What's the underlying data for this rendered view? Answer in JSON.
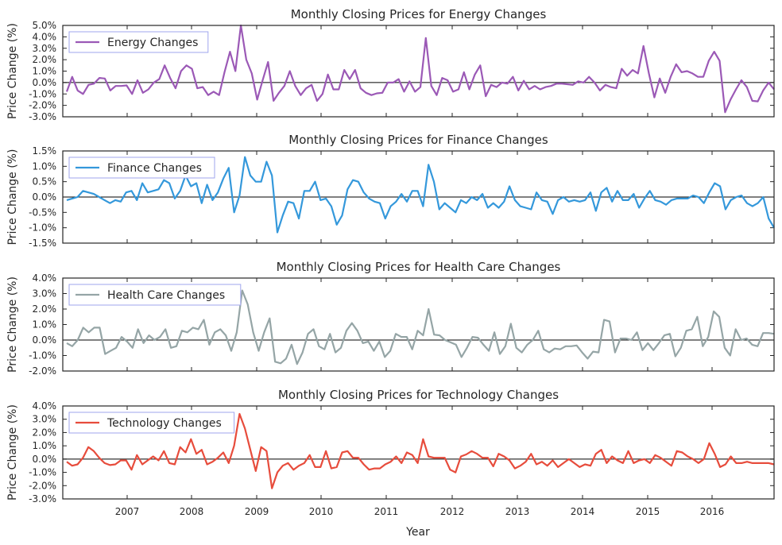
{
  "figure": {
    "xlabel": "Year"
  },
  "chart_data": [
    {
      "type": "line",
      "title": "Monthly Closing Prices for Energy Changes",
      "ylabel": "Price Change (%)",
      "ylim": [
        -3.0,
        5.0
      ],
      "yticks": [
        -3.0,
        -2.0,
        -1.0,
        0.0,
        1.0,
        2.0,
        3.0,
        4.0,
        5.0
      ],
      "ytick_labels": [
        "-3.0%",
        "-2.0%",
        "-1.0%",
        "0.0%",
        "1.0%",
        "2.0%",
        "3.0%",
        "4.0%",
        "5.0%"
      ],
      "legend_position": "top-left",
      "series": [
        {
          "name": "Energy Changes",
          "color": "#9b59b6",
          "values": [
            -0.8,
            0.5,
            -0.7,
            -1.0,
            -0.2,
            -0.1,
            0.4,
            0.35,
            -0.7,
            -0.3,
            -0.3,
            -0.25,
            -1.0,
            0.2,
            -0.9,
            -0.6,
            0.0,
            0.3,
            1.5,
            0.4,
            -0.5,
            1.0,
            1.5,
            1.2,
            -0.5,
            -0.4,
            -1.1,
            -0.8,
            -1.1,
            0.9,
            2.7,
            1.0,
            5.0,
            2.0,
            0.8,
            -1.5,
            0.2,
            1.8,
            -1.6,
            -0.9,
            -0.3,
            1.0,
            -0.3,
            -1.1,
            -0.5,
            -0.2,
            -1.6,
            -1.0,
            0.7,
            -0.6,
            -0.6,
            1.1,
            0.3,
            1.1,
            -0.5,
            -0.9,
            -1.1,
            -0.95,
            -0.9,
            0.0,
            0.0,
            0.3,
            -0.8,
            0.1,
            -0.8,
            -0.4,
            3.9,
            -0.3,
            -1.1,
            0.4,
            0.2,
            -0.8,
            -0.6,
            0.9,
            -0.6,
            0.7,
            1.5,
            -1.2,
            -0.2,
            -0.4,
            0.0,
            -0.1,
            0.5,
            -0.7,
            0.15,
            -0.6,
            -0.3,
            -0.6,
            -0.4,
            -0.3,
            -0.1,
            -0.1,
            -0.15,
            -0.2,
            0.1,
            0.0,
            0.5,
            0.0,
            -0.7,
            -0.2,
            -0.4,
            -0.5,
            1.2,
            0.6,
            1.1,
            0.8,
            3.2,
            0.8,
            -1.3,
            0.35,
            -0.9,
            0.5,
            1.6,
            0.9,
            1.0,
            0.8,
            0.5,
            0.5,
            1.9,
            2.7,
            1.9,
            -2.6,
            -1.5,
            -0.6,
            0.2,
            -0.4,
            -1.6,
            -1.65,
            -0.7,
            0.0,
            -0.6
          ]
        }
      ]
    },
    {
      "type": "line",
      "title": "Monthly Closing Prices for Finance Changes",
      "ylabel": "Price Change (%)",
      "ylim": [
        -1.5,
        1.5
      ],
      "yticks": [
        -1.5,
        -1.0,
        -0.5,
        0.0,
        0.5,
        1.0,
        1.5
      ],
      "ytick_labels": [
        "-1.5%",
        "-1.0%",
        "-0.5%",
        "0.0%",
        "0.5%",
        "1.0%",
        "1.5%"
      ],
      "legend_position": "top-left",
      "series": [
        {
          "name": "Finance Changes",
          "color": "#3498db",
          "values": [
            -0.1,
            -0.05,
            0.0,
            0.2,
            0.15,
            0.1,
            0.0,
            -0.1,
            -0.2,
            -0.1,
            -0.15,
            0.15,
            0.2,
            -0.1,
            0.45,
            0.15,
            0.2,
            0.25,
            0.55,
            0.45,
            -0.05,
            0.2,
            0.7,
            0.35,
            0.45,
            -0.2,
            0.4,
            -0.1,
            0.15,
            0.6,
            0.95,
            -0.5,
            0.05,
            1.3,
            0.7,
            0.5,
            0.5,
            1.15,
            0.7,
            -1.15,
            -0.6,
            -0.15,
            -0.2,
            -0.7,
            0.2,
            0.2,
            0.5,
            -0.1,
            -0.05,
            -0.3,
            -0.9,
            -0.6,
            0.25,
            0.55,
            0.5,
            0.15,
            -0.05,
            -0.15,
            -0.2,
            -0.7,
            -0.3,
            -0.15,
            0.1,
            -0.15,
            0.2,
            0.2,
            -0.3,
            1.05,
            0.5,
            -0.4,
            -0.2,
            -0.35,
            -0.5,
            -0.1,
            -0.2,
            0.0,
            -0.1,
            0.1,
            -0.35,
            -0.2,
            -0.35,
            -0.15,
            0.35,
            -0.1,
            -0.3,
            -0.35,
            -0.4,
            0.15,
            -0.1,
            -0.15,
            -0.55,
            -0.1,
            0.0,
            -0.15,
            -0.1,
            -0.15,
            -0.1,
            0.15,
            -0.45,
            0.15,
            0.3,
            -0.15,
            0.2,
            -0.1,
            -0.1,
            0.1,
            -0.35,
            -0.05,
            0.2,
            -0.1,
            -0.15,
            -0.25,
            -0.1,
            -0.05,
            -0.05,
            -0.05,
            0.05,
            0.0,
            -0.2,
            0.15,
            0.45,
            0.35,
            -0.4,
            -0.1,
            0.0,
            0.05,
            -0.2,
            -0.3,
            -0.2,
            0.0,
            -0.7,
            -1.0
          ]
        }
      ]
    },
    {
      "type": "line",
      "title": "Monthly Closing Prices for Health Care Changes",
      "ylabel": "Price Change (%)",
      "ylim": [
        -2.0,
        4.0
      ],
      "yticks": [
        -2.0,
        -1.0,
        0.0,
        1.0,
        2.0,
        3.0,
        4.0
      ],
      "ytick_labels": [
        "-2.0%",
        "-1.0%",
        "0.0%",
        "1.0%",
        "2.0%",
        "3.0%",
        "4.0%"
      ],
      "legend_position": "top-left",
      "series": [
        {
          "name": "Health Care Changes",
          "color": "#95a5a6",
          "values": [
            -0.2,
            -0.4,
            0.0,
            0.8,
            0.5,
            0.8,
            0.8,
            -0.9,
            -0.7,
            -0.5,
            0.2,
            -0.1,
            -0.5,
            0.7,
            -0.2,
            0.3,
            0.0,
            0.2,
            0.7,
            -0.5,
            -0.4,
            0.6,
            0.5,
            0.8,
            0.7,
            1.3,
            -0.3,
            0.5,
            0.7,
            0.3,
            -0.7,
            0.5,
            3.2,
            2.3,
            0.5,
            -0.7,
            0.5,
            1.4,
            -1.4,
            -1.5,
            -1.2,
            -0.3,
            -1.55,
            -0.8,
            0.4,
            0.7,
            -0.4,
            -0.6,
            0.4,
            -0.8,
            -0.5,
            0.6,
            1.1,
            0.6,
            -0.2,
            -0.1,
            -0.7,
            -0.1,
            -1.1,
            -0.7,
            0.4,
            0.2,
            0.2,
            -0.6,
            0.6,
            0.3,
            2.0,
            0.35,
            0.3,
            0.0,
            -0.15,
            -0.3,
            -1.1,
            -0.5,
            0.2,
            0.15,
            -0.3,
            -0.7,
            0.5,
            -0.9,
            -0.4,
            1.05,
            -0.5,
            -0.8,
            -0.3,
            0.0,
            0.6,
            -0.6,
            -0.8,
            -0.55,
            -0.6,
            -0.4,
            -0.4,
            -0.35,
            -0.8,
            -1.2,
            -0.75,
            -0.8,
            1.3,
            1.2,
            -0.8,
            0.1,
            0.1,
            0.0,
            0.5,
            -0.65,
            -0.2,
            -0.65,
            -0.2,
            0.3,
            0.4,
            -1.05,
            -0.5,
            0.6,
            0.7,
            1.5,
            -0.4,
            0.2,
            1.85,
            1.5,
            -0.5,
            -1.0,
            0.7,
            0.0,
            0.1,
            -0.3,
            -0.4,
            0.45,
            0.45,
            0.4
          ]
        }
      ]
    },
    {
      "type": "line",
      "title": "Monthly Closing Prices for Technology Changes",
      "ylabel": "Price Change (%)",
      "ylim": [
        -3.0,
        4.0
      ],
      "yticks": [
        -3.0,
        -2.0,
        -1.0,
        0.0,
        1.0,
        2.0,
        3.0,
        4.0
      ],
      "ytick_labels": [
        "-3.0%",
        "-2.0%",
        "-1.0%",
        "0.0%",
        "1.0%",
        "2.0%",
        "3.0%",
        "4.0%"
      ],
      "legend_position": "top-left",
      "x_ticks": [
        "2007",
        "2008",
        "2009",
        "2010",
        "2011",
        "2012",
        "2013",
        "2014",
        "2015",
        "2016"
      ],
      "series": [
        {
          "name": "Technology Changes",
          "color": "#e74c3c",
          "values": [
            -0.2,
            -0.5,
            -0.4,
            0.1,
            0.9,
            0.6,
            0.1,
            -0.3,
            -0.45,
            -0.4,
            -0.1,
            -0.1,
            -0.8,
            0.3,
            -0.4,
            -0.1,
            0.2,
            -0.1,
            0.6,
            -0.3,
            -0.4,
            0.9,
            0.5,
            1.5,
            0.4,
            0.7,
            -0.4,
            -0.2,
            0.1,
            0.5,
            -0.3,
            1.0,
            3.4,
            2.3,
            0.7,
            -0.9,
            0.9,
            0.6,
            -2.2,
            -1.0,
            -0.5,
            -0.3,
            -0.8,
            -0.5,
            -0.3,
            0.3,
            -0.6,
            -0.6,
            0.6,
            -0.7,
            -0.6,
            0.5,
            0.6,
            0.1,
            0.1,
            -0.4,
            -0.8,
            -0.7,
            -0.7,
            -0.4,
            -0.2,
            0.2,
            -0.3,
            0.5,
            0.3,
            -0.3,
            1.5,
            0.2,
            0.1,
            0.1,
            0.1,
            -0.8,
            -1.0,
            0.2,
            0.35,
            0.6,
            0.4,
            0.1,
            0.1,
            -0.55,
            0.4,
            0.2,
            -0.1,
            -0.7,
            -0.5,
            -0.2,
            0.4,
            -0.4,
            -0.2,
            -0.5,
            -0.1,
            -0.6,
            -0.3,
            0.0,
            -0.3,
            -0.6,
            -0.4,
            -0.5,
            0.4,
            0.7,
            -0.3,
            0.2,
            -0.1,
            -0.3,
            0.6,
            -0.3,
            -0.1,
            0.0,
            -0.3,
            0.3,
            0.1,
            -0.2,
            -0.5,
            0.6,
            0.5,
            0.2,
            0.0,
            -0.3,
            0.0,
            1.2,
            0.4,
            -0.6,
            -0.4,
            0.2,
            -0.3,
            -0.3,
            -0.2,
            -0.3,
            -0.3,
            -0.3,
            -0.3,
            -0.4
          ]
        }
      ]
    }
  ]
}
